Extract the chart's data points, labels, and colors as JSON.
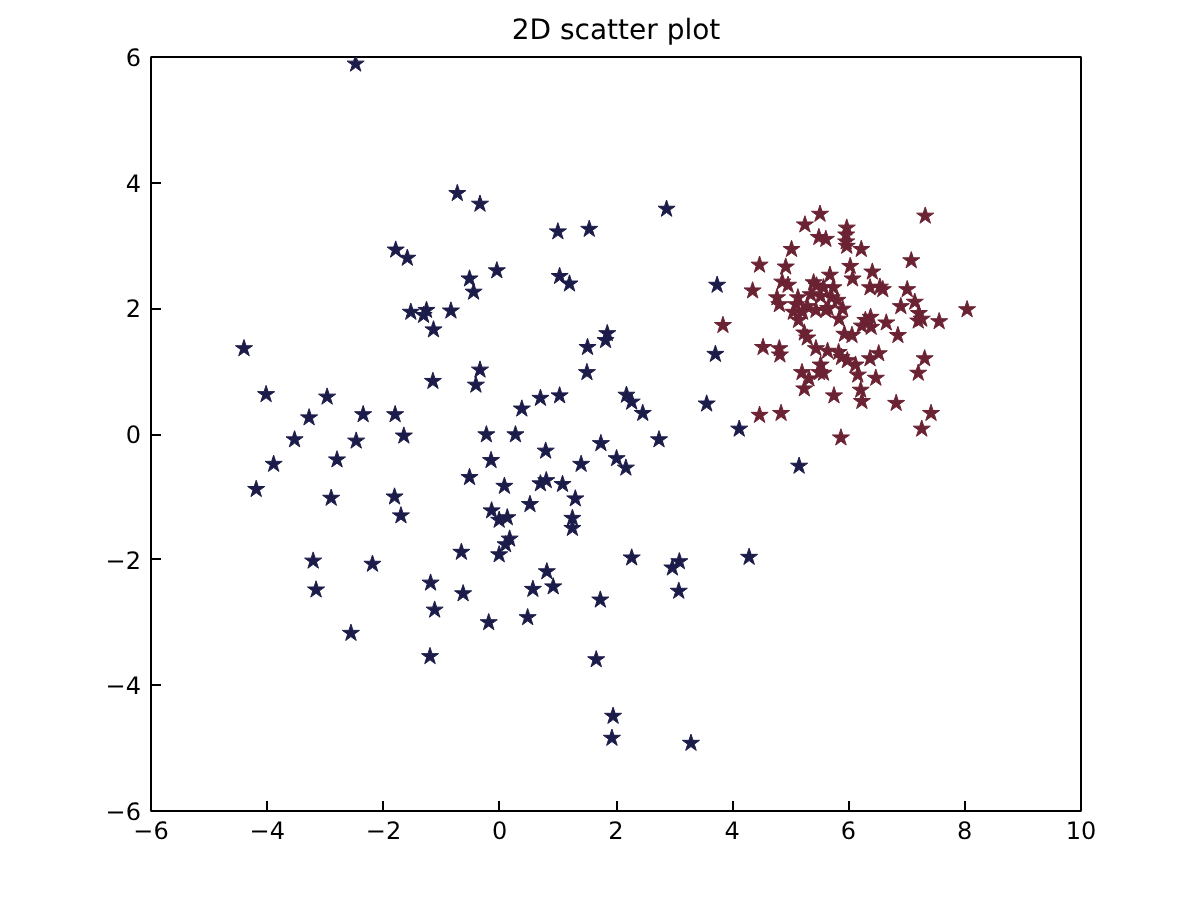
{
  "chart_data": {
    "type": "scatter",
    "title": "2D scatter plot",
    "xlim": [
      -6,
      10
    ],
    "ylim": [
      -6,
      6
    ],
    "xticks": [
      -6,
      -4,
      -2,
      0,
      2,
      4,
      6,
      8,
      10
    ],
    "yticks": [
      -6,
      -4,
      -2,
      0,
      2,
      4,
      6
    ],
    "grid": false,
    "marker": "star",
    "series": [
      {
        "color": "#1c1c4a",
        "x": [
          -2.48,
          -0.73,
          -1.79,
          -1.59,
          -0.52,
          -0.45,
          -1.53,
          -1.26,
          -1.31,
          -0.84,
          -1.14,
          -4.4,
          -1.15,
          -0.41,
          -4.02,
          -2.97,
          -3.28,
          -2.35,
          -1.8,
          -1.65,
          -3.53,
          -2.47,
          -3.89,
          -2.8,
          -0.52,
          -4.19,
          -2.9,
          -1.81,
          -1.7,
          -0.66,
          -3.21,
          -2.19,
          -1.19,
          -0.63,
          -3.16,
          -1.12,
          -2.56,
          -1.2,
          -0.34,
          1.0,
          1.54,
          2.87,
          -0.05,
          1.03,
          1.2,
          3.74,
          1.51,
          1.85,
          1.82,
          3.71,
          1.5,
          -0.34,
          0.38,
          0.7,
          1.03,
          2.18,
          2.27,
          2.46,
          3.56,
          4.12,
          -0.23,
          0.27,
          1.74,
          2.74,
          0.79,
          -0.15,
          1.4,
          2.01,
          2.17,
          0.08,
          0.7,
          0.8,
          1.08,
          1.3,
          0.52,
          -0.14,
          -0.01,
          0.13,
          1.25,
          1.25,
          0.17,
          0.1,
          -0.01,
          2.27,
          2.97,
          3.09,
          4.29,
          0.81,
          0.57,
          0.92,
          1.73,
          3.08,
          -0.19,
          0.48,
          1.66,
          1.95,
          1.93,
          3.29,
          5.15
        ],
        "values": [
          5.89,
          3.83,
          2.93,
          2.8,
          2.47,
          2.26,
          1.94,
          1.97,
          1.89,
          1.96,
          1.66,
          1.36,
          0.84,
          0.78,
          0.63,
          0.59,
          0.26,
          0.31,
          0.31,
          -0.03,
          -0.09,
          -0.11,
          -0.48,
          -0.41,
          -0.69,
          -0.88,
          -1.02,
          -1.0,
          -1.3,
          -1.88,
          -2.02,
          -2.07,
          -2.37,
          -2.54,
          -2.48,
          -2.8,
          -3.17,
          -3.54,
          3.66,
          3.22,
          3.26,
          3.58,
          2.6,
          2.51,
          2.39,
          2.37,
          1.38,
          1.6,
          1.49,
          1.27,
          0.98,
          1.02,
          0.4,
          0.57,
          0.61,
          0.62,
          0.51,
          0.33,
          0.48,
          0.08,
          -0.01,
          -0.01,
          -0.15,
          -0.09,
          -0.27,
          -0.42,
          -0.48,
          -0.39,
          -0.54,
          -0.83,
          -0.79,
          -0.74,
          -0.8,
          -1.03,
          -1.12,
          -1.22,
          -1.37,
          -1.33,
          -1.34,
          -1.5,
          -1.67,
          -1.76,
          -1.92,
          -1.97,
          -2.13,
          -2.03,
          -1.96,
          -2.19,
          -2.47,
          -2.43,
          -2.64,
          -2.5,
          -3.0,
          -2.92,
          -3.59,
          -4.49,
          -4.84,
          -4.92,
          -0.51
        ]
      },
      {
        "color": "#6b2232",
        "x": [
          5.51,
          7.32,
          5.25,
          5.97,
          5.96,
          5.49,
          5.61,
          5.96,
          5.97,
          5.02,
          6.22,
          4.47,
          4.92,
          7.08,
          6.03,
          6.41,
          5.68,
          4.86,
          4.96,
          5.4,
          5.45,
          5.57,
          5.74,
          6.07,
          6.37,
          6.54,
          6.59,
          4.35,
          7.01,
          4.77,
          5.13,
          5.35,
          5.52,
          5.71,
          5.81,
          4.81,
          5.1,
          5.29,
          5.65,
          6.9,
          7.14,
          5.05,
          5.21,
          5.44,
          5.61,
          5.9,
          7.21,
          8.04,
          3.84,
          5.14,
          5.84,
          6.29,
          6.38,
          6.23,
          6.39,
          6.65,
          7.2,
          7.56,
          7.26,
          5.24,
          5.29,
          5.93,
          6.06,
          6.85,
          4.53,
          4.81,
          4.82,
          5.44,
          5.64,
          5.83,
          5.88,
          5.98,
          6.37,
          6.52,
          7.31,
          5.2,
          5.5,
          5.52,
          6.12,
          6.16,
          7.2,
          5.32,
          5.57,
          6.47,
          5.24,
          6.21,
          5.75,
          6.23,
          6.82,
          4.47,
          4.84,
          7.42,
          7.26,
          5.87
        ],
        "values": [
          3.5,
          3.47,
          3.33,
          3.28,
          3.17,
          3.13,
          3.1,
          3.06,
          2.99,
          2.94,
          2.94,
          2.69,
          2.66,
          2.76,
          2.67,
          2.58,
          2.53,
          2.42,
          2.37,
          2.41,
          2.36,
          2.33,
          2.33,
          2.47,
          2.33,
          2.34,
          2.3,
          2.28,
          2.3,
          2.17,
          2.17,
          2.22,
          2.19,
          2.17,
          2.13,
          2.06,
          2.06,
          2.03,
          2.0,
          2.03,
          2.1,
          1.94,
          1.94,
          1.97,
          1.97,
          1.99,
          1.92,
          1.98,
          1.73,
          1.81,
          1.83,
          1.81,
          1.86,
          1.72,
          1.7,
          1.77,
          1.8,
          1.79,
          1.83,
          1.61,
          1.53,
          1.59,
          1.57,
          1.57,
          1.38,
          1.36,
          1.26,
          1.36,
          1.32,
          1.3,
          1.22,
          1.17,
          1.2,
          1.28,
          1.2,
          0.98,
          0.98,
          1.1,
          1.1,
          0.94,
          0.97,
          0.88,
          0.97,
          0.89,
          0.72,
          0.7,
          0.61,
          0.52,
          0.49,
          0.3,
          0.33,
          0.33,
          0.08,
          -0.06
        ]
      }
    ]
  }
}
